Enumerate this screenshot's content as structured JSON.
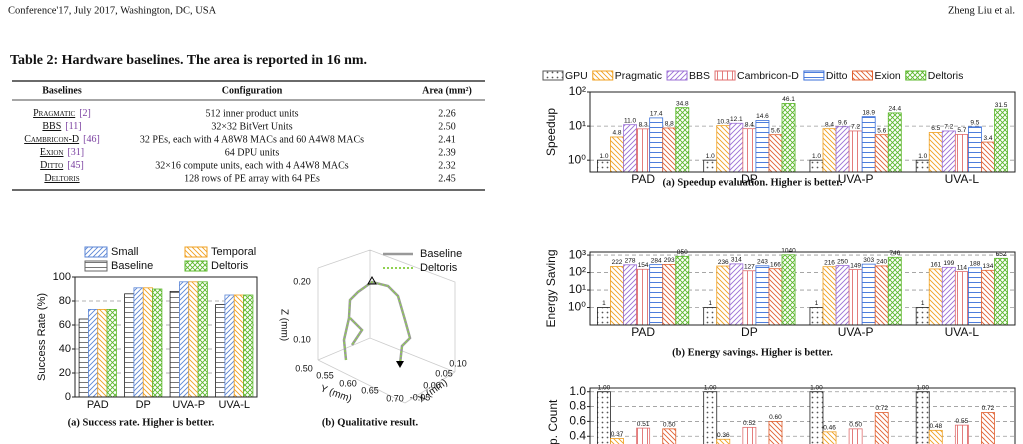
{
  "header": {
    "left": "Conference'17, July 2017, Washington, DC, USA",
    "right": "Zheng Liu et al."
  },
  "table": {
    "caption": "Table 2: Hardware baselines. The area is reported in 16 nm.",
    "columns": [
      "Baselines",
      "Configuration",
      "Area (mm²)"
    ],
    "rows": [
      {
        "name": "Pragmatic",
        "cite": "[2]",
        "config": "512 inner product units",
        "area": "2.26"
      },
      {
        "name": "BBS",
        "cite": "[11]",
        "config": "32×32 BitVert Units",
        "area": "2.50"
      },
      {
        "name": "Cambricon-D",
        "cite": "[46]",
        "config": "32 PEs, each with 4 A8W8 MACs and 60 A4W8 MACs",
        "area": "2.41"
      },
      {
        "name": "Exion",
        "cite": "[31]",
        "config": "64 DPU units",
        "area": "2.39"
      },
      {
        "name": "Ditto",
        "cite": "[45]",
        "config": "32×16 compute units, each with 4 A4W8 MACs",
        "area": "2.32"
      },
      {
        "name": "Deltoris",
        "config": "128 rows of PE array with 64 PEs",
        "area": "2.45"
      }
    ]
  },
  "left_figures": {
    "success": {
      "type": "bar",
      "caption": "(a) Success rate. Higher is better.",
      "ylabel": "Success Rate (%)",
      "categories": [
        "PAD",
        "DP",
        "UVA-P",
        "UVA-L"
      ],
      "series": [
        {
          "name": "Baseline",
          "color": "#666666",
          "hatch": "horiz"
        },
        {
          "name": "Small",
          "color": "#5b86d6",
          "hatch": "diag"
        },
        {
          "name": "Temporal",
          "color": "#f0a020",
          "hatch": "diag2"
        },
        {
          "name": "Deltoris",
          "color": "#5cb82c",
          "hatch": "cross"
        }
      ],
      "values": [
        [
          65,
          86,
          88,
          77
        ],
        [
          73,
          91,
          96,
          85
        ],
        [
          73,
          91,
          96,
          85
        ],
        [
          73,
          90,
          96,
          85
        ]
      ],
      "ylim": [
        0,
        100
      ],
      "yticks": [
        0,
        20,
        40,
        60,
        80,
        100
      ],
      "grid": true
    },
    "qualitative": {
      "caption": "(b) Qualitative result.",
      "legend": [
        "Baseline",
        "Deltoris"
      ],
      "zlabel": "Z (mm)",
      "ylabel": "Y (mm)",
      "xlabel": "X (mm)",
      "zticks": [
        "0.10",
        "0.20"
      ],
      "yticks": [
        "0.50",
        "0.55",
        "0.60",
        "0.65",
        "0.70"
      ],
      "xticks": [
        "-0.05",
        "0.00",
        "0.05",
        "0.10"
      ]
    }
  },
  "right_figures": {
    "series": [
      {
        "name": "GPU",
        "color": "#555555",
        "hatch": "dots"
      },
      {
        "name": "Pragmatic",
        "color": "#f0a020",
        "hatch": "diag2"
      },
      {
        "name": "BBS",
        "color": "#9b6fd6",
        "hatch": "diag"
      },
      {
        "name": "Cambricon-D",
        "color": "#e06e6e",
        "hatch": "vert"
      },
      {
        "name": "Ditto",
        "color": "#3a6fd8",
        "hatch": "horiz"
      },
      {
        "name": "Exion",
        "color": "#e06030",
        "hatch": "diag2"
      },
      {
        "name": "Deltoris",
        "color": "#5cb82c",
        "hatch": "cross"
      }
    ],
    "speedup": {
      "type": "bar",
      "log": true,
      "data_labels": true,
      "caption": "(a) Speedup evaluation. Higher is better.",
      "ylabel": "Speedup",
      "categories": [
        "PAD",
        "DP",
        "UVA-P",
        "UVA-L"
      ],
      "values": [
        [
          1,
          1,
          1,
          1
        ],
        [
          4.8,
          10.3,
          8.4,
          6.5
        ],
        [
          11,
          12.1,
          9.6,
          7.2
        ],
        [
          8.3,
          8.4,
          7.2,
          5.7
        ],
        [
          17.4,
          14.6,
          18.9,
          9.5
        ],
        [
          8.8,
          5.6,
          5.6,
          3.4
        ],
        [
          34.8,
          46.1,
          24.4,
          31.5
        ]
      ],
      "value_labels": [
        [
          "1.0",
          "1.0",
          "1.0",
          "1.0"
        ],
        [
          "4.8",
          "10.3",
          "8.4",
          "6.5"
        ],
        [
          "11.0",
          "12.1",
          "9.6",
          "7.2"
        ],
        [
          "8.3",
          "8.4",
          "7.2",
          "5.7"
        ],
        [
          "17.4",
          "14.6",
          "18.9",
          "9.5"
        ],
        [
          "8.8",
          "5.6",
          "5.6",
          "3.4"
        ],
        [
          "34.8",
          "46.1",
          "24.4",
          "31.5"
        ]
      ],
      "ylim": [
        0.45,
        100
      ],
      "yticks": [
        {
          "value": 1,
          "label": "10⁰"
        },
        {
          "value": 10,
          "label": "10¹"
        },
        {
          "value": 100,
          "label": "10²"
        }
      ],
      "grid": true
    },
    "energy": {
      "type": "bar",
      "log": true,
      "data_labels": true,
      "caption": "(b) Energy savings. Higher is better.",
      "ylabel": "Energy Saving",
      "categories": [
        "PAD",
        "DP",
        "UVA-P",
        "UVA-L"
      ],
      "values": [
        [
          1,
          1,
          1,
          1
        ],
        [
          222,
          236,
          216,
          161
        ],
        [
          278,
          314,
          250,
          199
        ],
        [
          154,
          127,
          149,
          114
        ],
        [
          284,
          243,
          303,
          188
        ],
        [
          293,
          166,
          240,
          134
        ],
        [
          850,
          1040,
          746,
          652
        ]
      ],
      "ylim": [
        0.1,
        1500
      ],
      "yticks": [
        {
          "value": 1,
          "label": "10⁰"
        },
        {
          "value": 10,
          "label": "10¹"
        },
        {
          "value": 100,
          "label": "10²"
        },
        {
          "value": 1000,
          "label": "10³"
        }
      ],
      "grid": true
    },
    "op_count": {
      "type": "bar",
      "data_labels": true,
      "ylabel": "Op. Count",
      "values": [
        [
          1,
          1,
          1,
          1
        ],
        [
          0.37,
          0.36,
          0.46,
          0.48
        ],
        [
          null,
          null,
          null,
          null
        ],
        [
          0.51,
          0.52,
          0.5,
          0.55
        ],
        [
          null,
          null,
          null,
          null
        ],
        [
          0.5,
          0.6,
          0.72,
          0.72
        ],
        [
          null,
          null,
          null,
          null
        ]
      ],
      "value_labels": [
        [
          "1.00",
          "1.00",
          "1.00",
          "1.00"
        ],
        [
          "0.37",
          "0.36",
          "0.46",
          "0.48"
        ],
        [
          null,
          null,
          null,
          null
        ],
        [
          "0.51",
          "0.52",
          "0.50",
          "0.55"
        ],
        [
          null,
          null,
          null,
          null
        ],
        [
          "0.50",
          "0.60",
          "0.72",
          "0.72"
        ],
        [
          null,
          null,
          null,
          null
        ]
      ],
      "ylim": [
        0,
        1.05
      ],
      "yticks": [
        0.4,
        0.6,
        0.8,
        {
          "value": 1,
          "label": "1.0"
        }
      ],
      "grid": true
    }
  }
}
